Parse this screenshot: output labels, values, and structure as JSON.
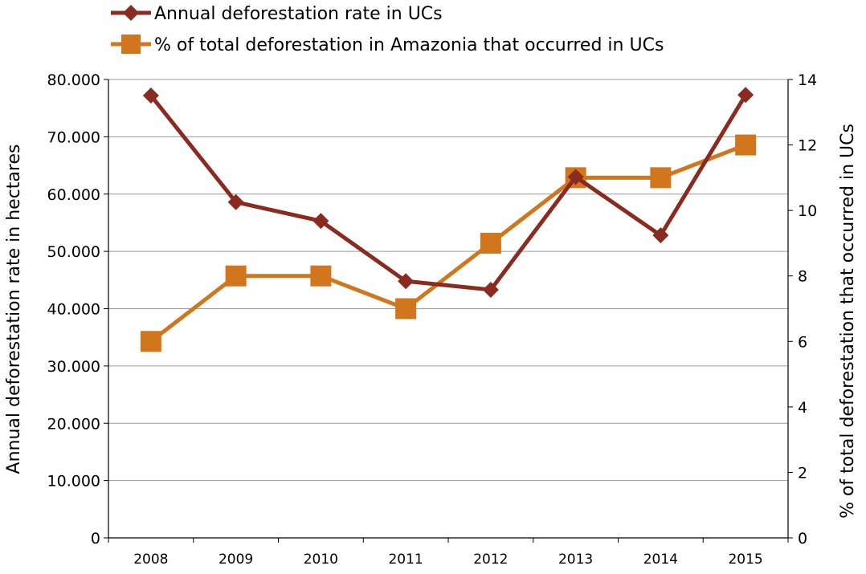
{
  "chart_data": {
    "type": "line",
    "title": "",
    "x": [
      "2008",
      "2009",
      "2010",
      "2011",
      "2012",
      "2013",
      "2014",
      "2015"
    ],
    "xlabel": "",
    "ylabel": "Annual deforestation rate in hectares",
    "y2label": "% of total deforestation that occurred in UCs",
    "ylim": [
      0,
      80000
    ],
    "y2lim": [
      0,
      14
    ],
    "yticks": [
      "0",
      "10.000",
      "20.000",
      "30.000",
      "40.000",
      "50.000",
      "60.000",
      "70.000",
      "80.000"
    ],
    "y2ticks": [
      "0",
      "2",
      "4",
      "6",
      "8",
      "10",
      "12",
      "14"
    ],
    "grid": true,
    "legend_position": "top",
    "series": [
      {
        "name": "Annual deforestation rate in UCs",
        "axis": "left",
        "marker": "diamond",
        "color": "#8B2A1E",
        "values": [
          77200,
          58600,
          55300,
          44800,
          43300,
          63000,
          52800,
          77300
        ]
      },
      {
        "name": "% of total deforestation in Amazonia that occurred in UCs",
        "axis": "right",
        "marker": "square",
        "color": "#D2761E",
        "values": [
          6,
          8,
          8,
          7,
          9,
          11,
          11,
          12
        ]
      }
    ]
  }
}
